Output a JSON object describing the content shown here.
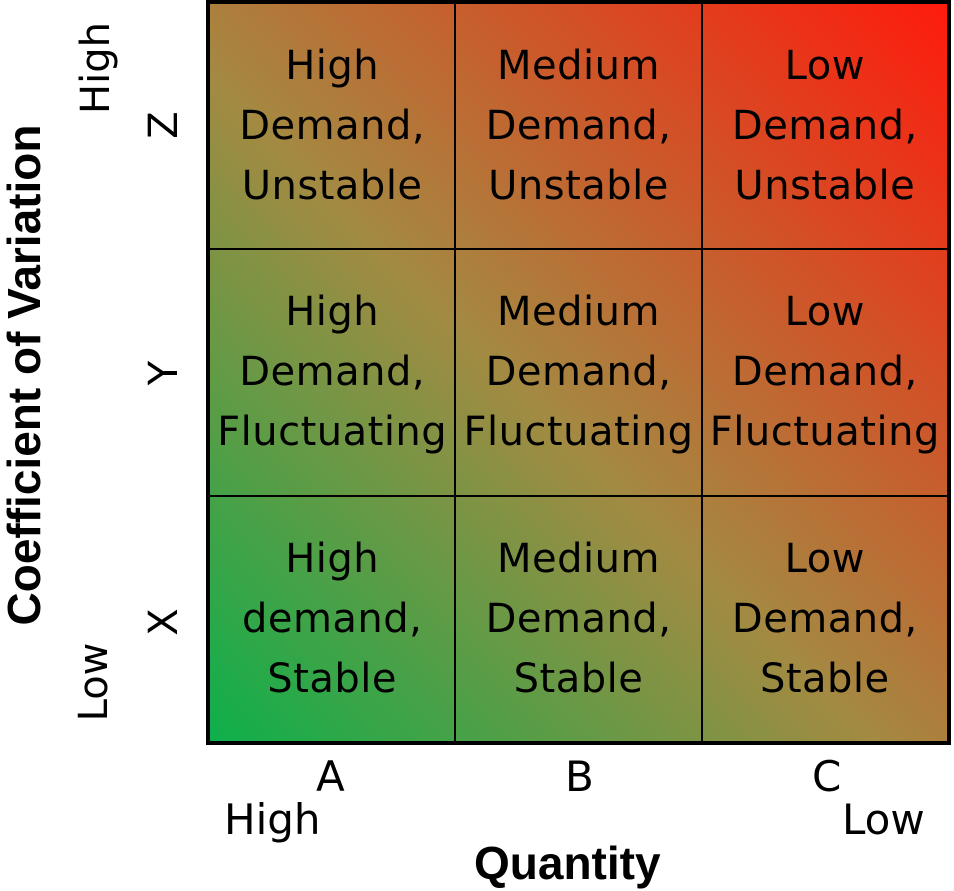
{
  "axes": {
    "y_title": "Coefficient of Variation",
    "y_high": "High",
    "y_low": "Low",
    "x_title": "Quantity",
    "x_high": "High",
    "x_low": "Low"
  },
  "rows": [
    "Z",
    "Y",
    "X"
  ],
  "columns": [
    "A",
    "B",
    "C"
  ],
  "cells": [
    [
      [
        "High",
        "Demand,",
        "Unstable"
      ],
      [
        "Medium",
        "Demand,",
        "Unstable"
      ],
      [
        "Low",
        "Demand,",
        "Unstable"
      ]
    ],
    [
      [
        "High",
        "Demand,",
        "Fluctuating"
      ],
      [
        "Medium",
        "Demand,",
        "Fluctuating"
      ],
      [
        "Low",
        "Demand,",
        "Fluctuating"
      ]
    ],
    [
      [
        "High",
        "demand,",
        "Stable"
      ],
      [
        "Medium",
        "Demand,",
        "Stable"
      ],
      [
        "Low",
        "Demand,",
        "Stable"
      ]
    ]
  ],
  "colors": {
    "gradient_start": "#0db04b",
    "gradient_mid": "#a38a42",
    "gradient_end": "#ff1a0d"
  }
}
